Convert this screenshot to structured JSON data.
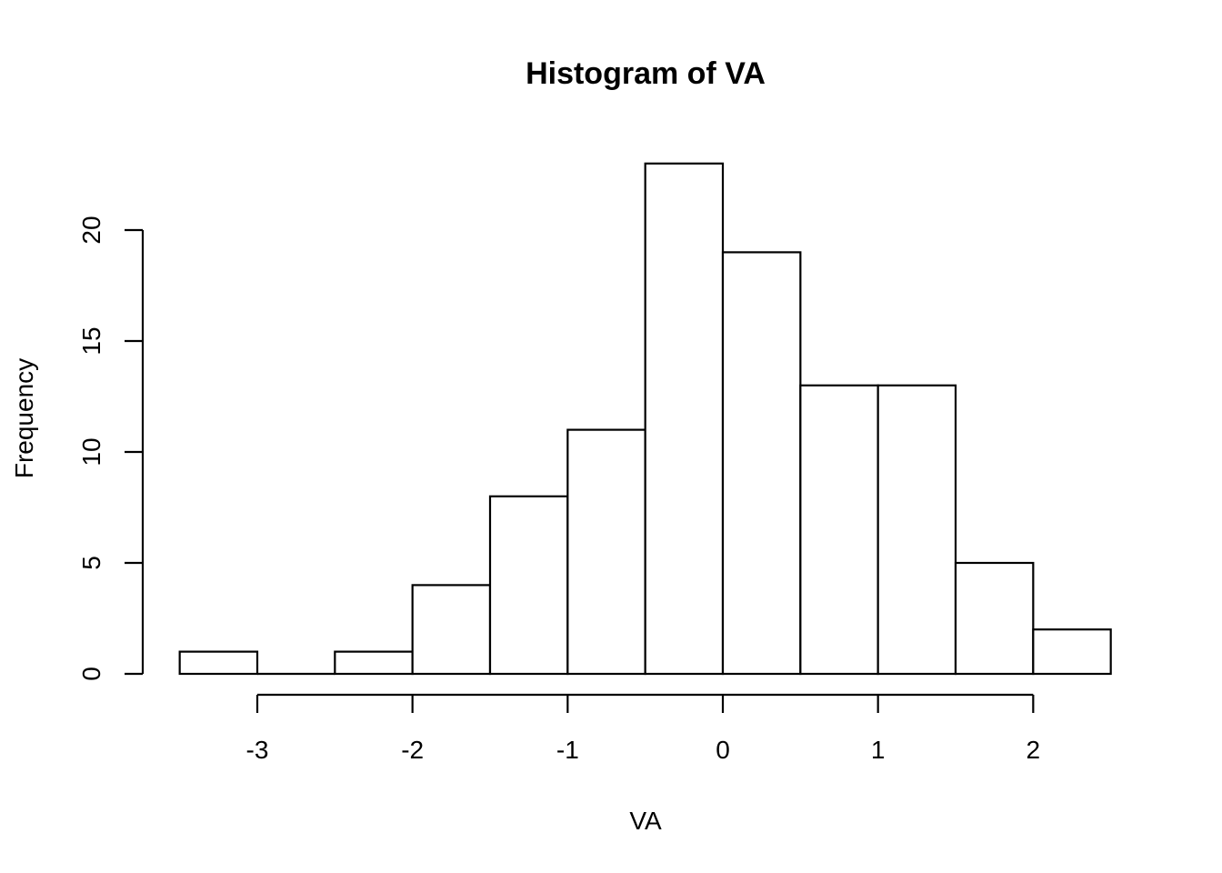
{
  "chart_data": {
    "type": "bar",
    "title": "Histogram of VA",
    "xlabel": "VA",
    "ylabel": "Frequency",
    "bin_edges": [
      -3.5,
      -3.0,
      -2.5,
      -2.0,
      -1.5,
      -1.0,
      -0.5,
      0.0,
      0.5,
      1.0,
      1.5,
      2.0,
      2.5
    ],
    "values": [
      1,
      0,
      1,
      4,
      8,
      11,
      23,
      19,
      13,
      13,
      5,
      2
    ],
    "x_ticks": [
      -3,
      -2,
      -1,
      0,
      1,
      2
    ],
    "x_tick_labels": [
      "-3",
      "-2",
      "-1",
      "0",
      "1",
      "2"
    ],
    "y_ticks": [
      0,
      5,
      10,
      15,
      20
    ],
    "y_tick_labels": [
      "0",
      "5",
      "10",
      "15",
      "20"
    ],
    "xlim": [
      -3.5,
      2.5
    ],
    "ylim": [
      0,
      23
    ],
    "grid": false,
    "bar_fill": "#ffffff",
    "bar_stroke": "#000000"
  }
}
